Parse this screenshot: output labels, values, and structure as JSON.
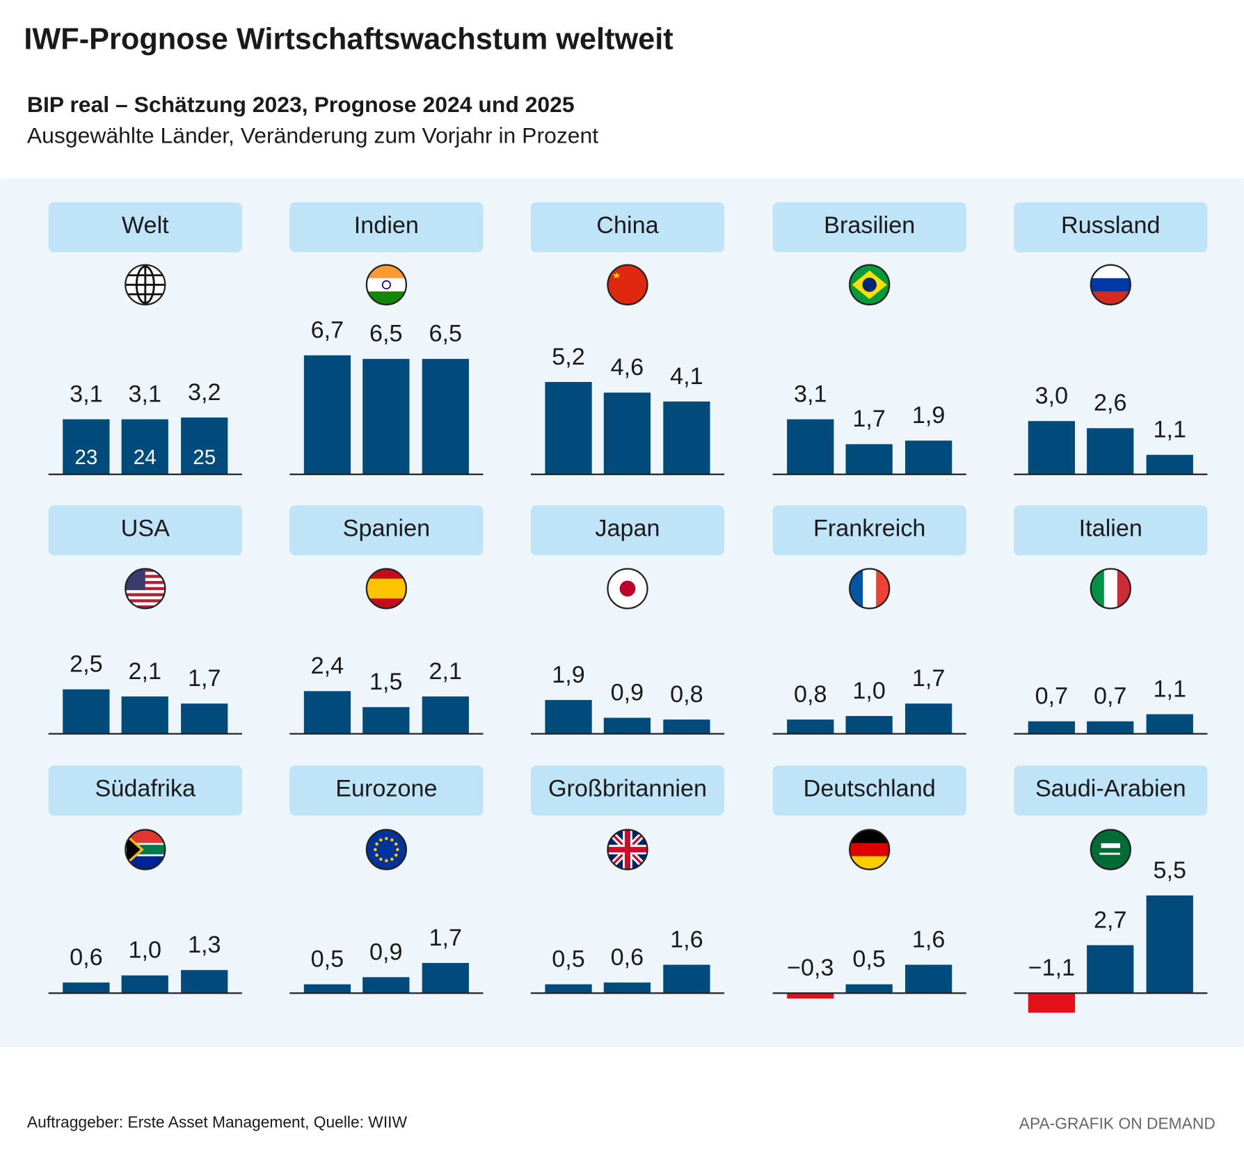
{
  "title": "IWF-Prognose Wirtschaftswachstum weltweit",
  "subtitle": "BIP real  – Schätzung 2023, Prognose 2024 und 2025",
  "description": "Ausgewählte Länder, Veränderung zum Vorjahr in Prozent",
  "source": "Auftraggeber: Erste Asset Management, Quelle: WIIW",
  "credit": "APA-GRAFIK ON DEMAND",
  "chart_data": [
    {
      "type": "bar",
      "title": "Welt",
      "categories": [
        "23",
        "24",
        "25"
      ],
      "values": [
        3.1,
        3.1,
        3.2
      ],
      "value_labels": [
        "3,1",
        "3,1",
        "3,2"
      ],
      "color": "#004a7c",
      "negative_color": "#e3101a"
    },
    {
      "type": "bar",
      "title": "Indien",
      "values": [
        6.7,
        6.5,
        6.5
      ],
      "value_labels": [
        "6,7",
        "6,5",
        "6,5"
      ],
      "color": "#004a7c",
      "negative_color": "#e3101a"
    },
    {
      "type": "bar",
      "title": "China",
      "values": [
        5.2,
        4.6,
        4.1
      ],
      "value_labels": [
        "5,2",
        "4,6",
        "4,1"
      ],
      "color": "#004a7c",
      "negative_color": "#e3101a"
    },
    {
      "type": "bar",
      "title": "Brasilien",
      "values": [
        3.1,
        1.7,
        1.9
      ],
      "value_labels": [
        "3,1",
        "1,7",
        "1,9"
      ],
      "color": "#004a7c",
      "negative_color": "#e3101a"
    },
    {
      "type": "bar",
      "title": "Russland",
      "values": [
        3.0,
        2.6,
        1.1
      ],
      "value_labels": [
        "3,0",
        "2,6",
        "1,1"
      ],
      "color": "#004a7c",
      "negative_color": "#e3101a"
    },
    {
      "type": "bar",
      "title": "USA",
      "values": [
        2.5,
        2.1,
        1.7
      ],
      "value_labels": [
        "2,5",
        "2,1",
        "1,7"
      ],
      "color": "#004a7c",
      "negative_color": "#e3101a"
    },
    {
      "type": "bar",
      "title": "Spanien",
      "values": [
        2.4,
        1.5,
        2.1
      ],
      "value_labels": [
        "2,4",
        "1,5",
        "2,1"
      ],
      "color": "#004a7c",
      "negative_color": "#e3101a"
    },
    {
      "type": "bar",
      "title": "Japan",
      "values": [
        1.9,
        0.9,
        0.8
      ],
      "value_labels": [
        "1,9",
        "0,9",
        "0,8"
      ],
      "color": "#004a7c",
      "negative_color": "#e3101a"
    },
    {
      "type": "bar",
      "title": "Frankreich",
      "values": [
        0.8,
        1.0,
        1.7
      ],
      "value_labels": [
        "0,8",
        "1,0",
        "1,7"
      ],
      "color": "#004a7c",
      "negative_color": "#e3101a"
    },
    {
      "type": "bar",
      "title": "Italien",
      "values": [
        0.7,
        0.7,
        1.1
      ],
      "value_labels": [
        "0,7",
        "0,7",
        "1,1"
      ],
      "color": "#004a7c",
      "negative_color": "#e3101a"
    },
    {
      "type": "bar",
      "title": "Südafrika",
      "values": [
        0.6,
        1.0,
        1.3
      ],
      "value_labels": [
        "0,6",
        "1,0",
        "1,3"
      ],
      "color": "#004a7c",
      "negative_color": "#e3101a"
    },
    {
      "type": "bar",
      "title": "Eurozone",
      "values": [
        0.5,
        0.9,
        1.7
      ],
      "value_labels": [
        "0,5",
        "0,9",
        "1,7"
      ],
      "color": "#004a7c",
      "negative_color": "#e3101a"
    },
    {
      "type": "bar",
      "title": "Großbritannien",
      "values": [
        0.5,
        0.6,
        1.6
      ],
      "value_labels": [
        "0,5",
        "0,6",
        "1,6"
      ],
      "color": "#004a7c",
      "negative_color": "#e3101a"
    },
    {
      "type": "bar",
      "title": "Deutschland",
      "values": [
        -0.3,
        0.5,
        1.6
      ],
      "value_labels": [
        "−0,3",
        "0,5",
        "1,6"
      ],
      "color": "#004a7c",
      "negative_color": "#e3101a"
    },
    {
      "type": "bar",
      "title": "Saudi-Arabien",
      "values": [
        -1.1,
        2.7,
        5.5
      ],
      "value_labels": [
        "−1,1",
        "2,7",
        "5,5"
      ],
      "color": "#004a7c",
      "negative_color": "#e3101a"
    }
  ]
}
